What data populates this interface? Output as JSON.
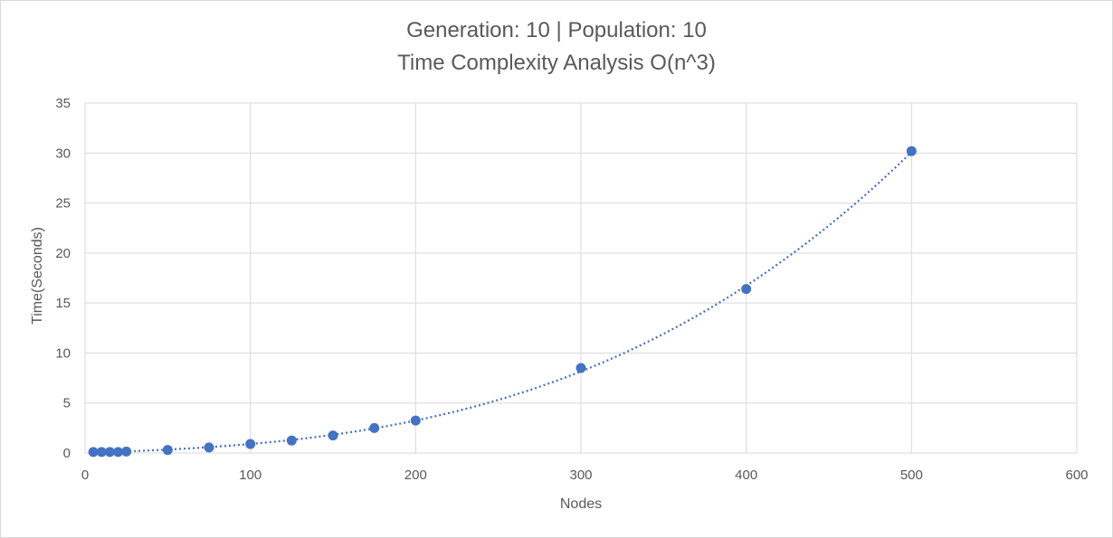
{
  "chart_data": {
    "type": "scatter",
    "title_line1": "Generation: 10 | Population: 10",
    "title_line2": "Time Complexity Analysis O(n^3)",
    "xlabel": "Nodes",
    "ylabel": "Time(Seconds)",
    "xlim": [
      0,
      600
    ],
    "ylim": [
      0,
      35
    ],
    "xticks": [
      0,
      100,
      200,
      300,
      400,
      500,
      600
    ],
    "yticks": [
      0,
      5,
      10,
      15,
      20,
      25,
      30,
      35
    ],
    "grid": true,
    "trendline": "polynomial order 3, dotted",
    "marker_color": "#4472c4",
    "series": [
      {
        "x": [
          5,
          10,
          15,
          20,
          25,
          50,
          75,
          100,
          125,
          150,
          175,
          200,
          300,
          400,
          500
        ],
        "y": [
          0.1,
          0.1,
          0.1,
          0.1,
          0.15,
          0.3,
          0.55,
          0.9,
          1.25,
          1.75,
          2.5,
          3.25,
          8.5,
          16.4,
          30.2
        ]
      }
    ]
  }
}
